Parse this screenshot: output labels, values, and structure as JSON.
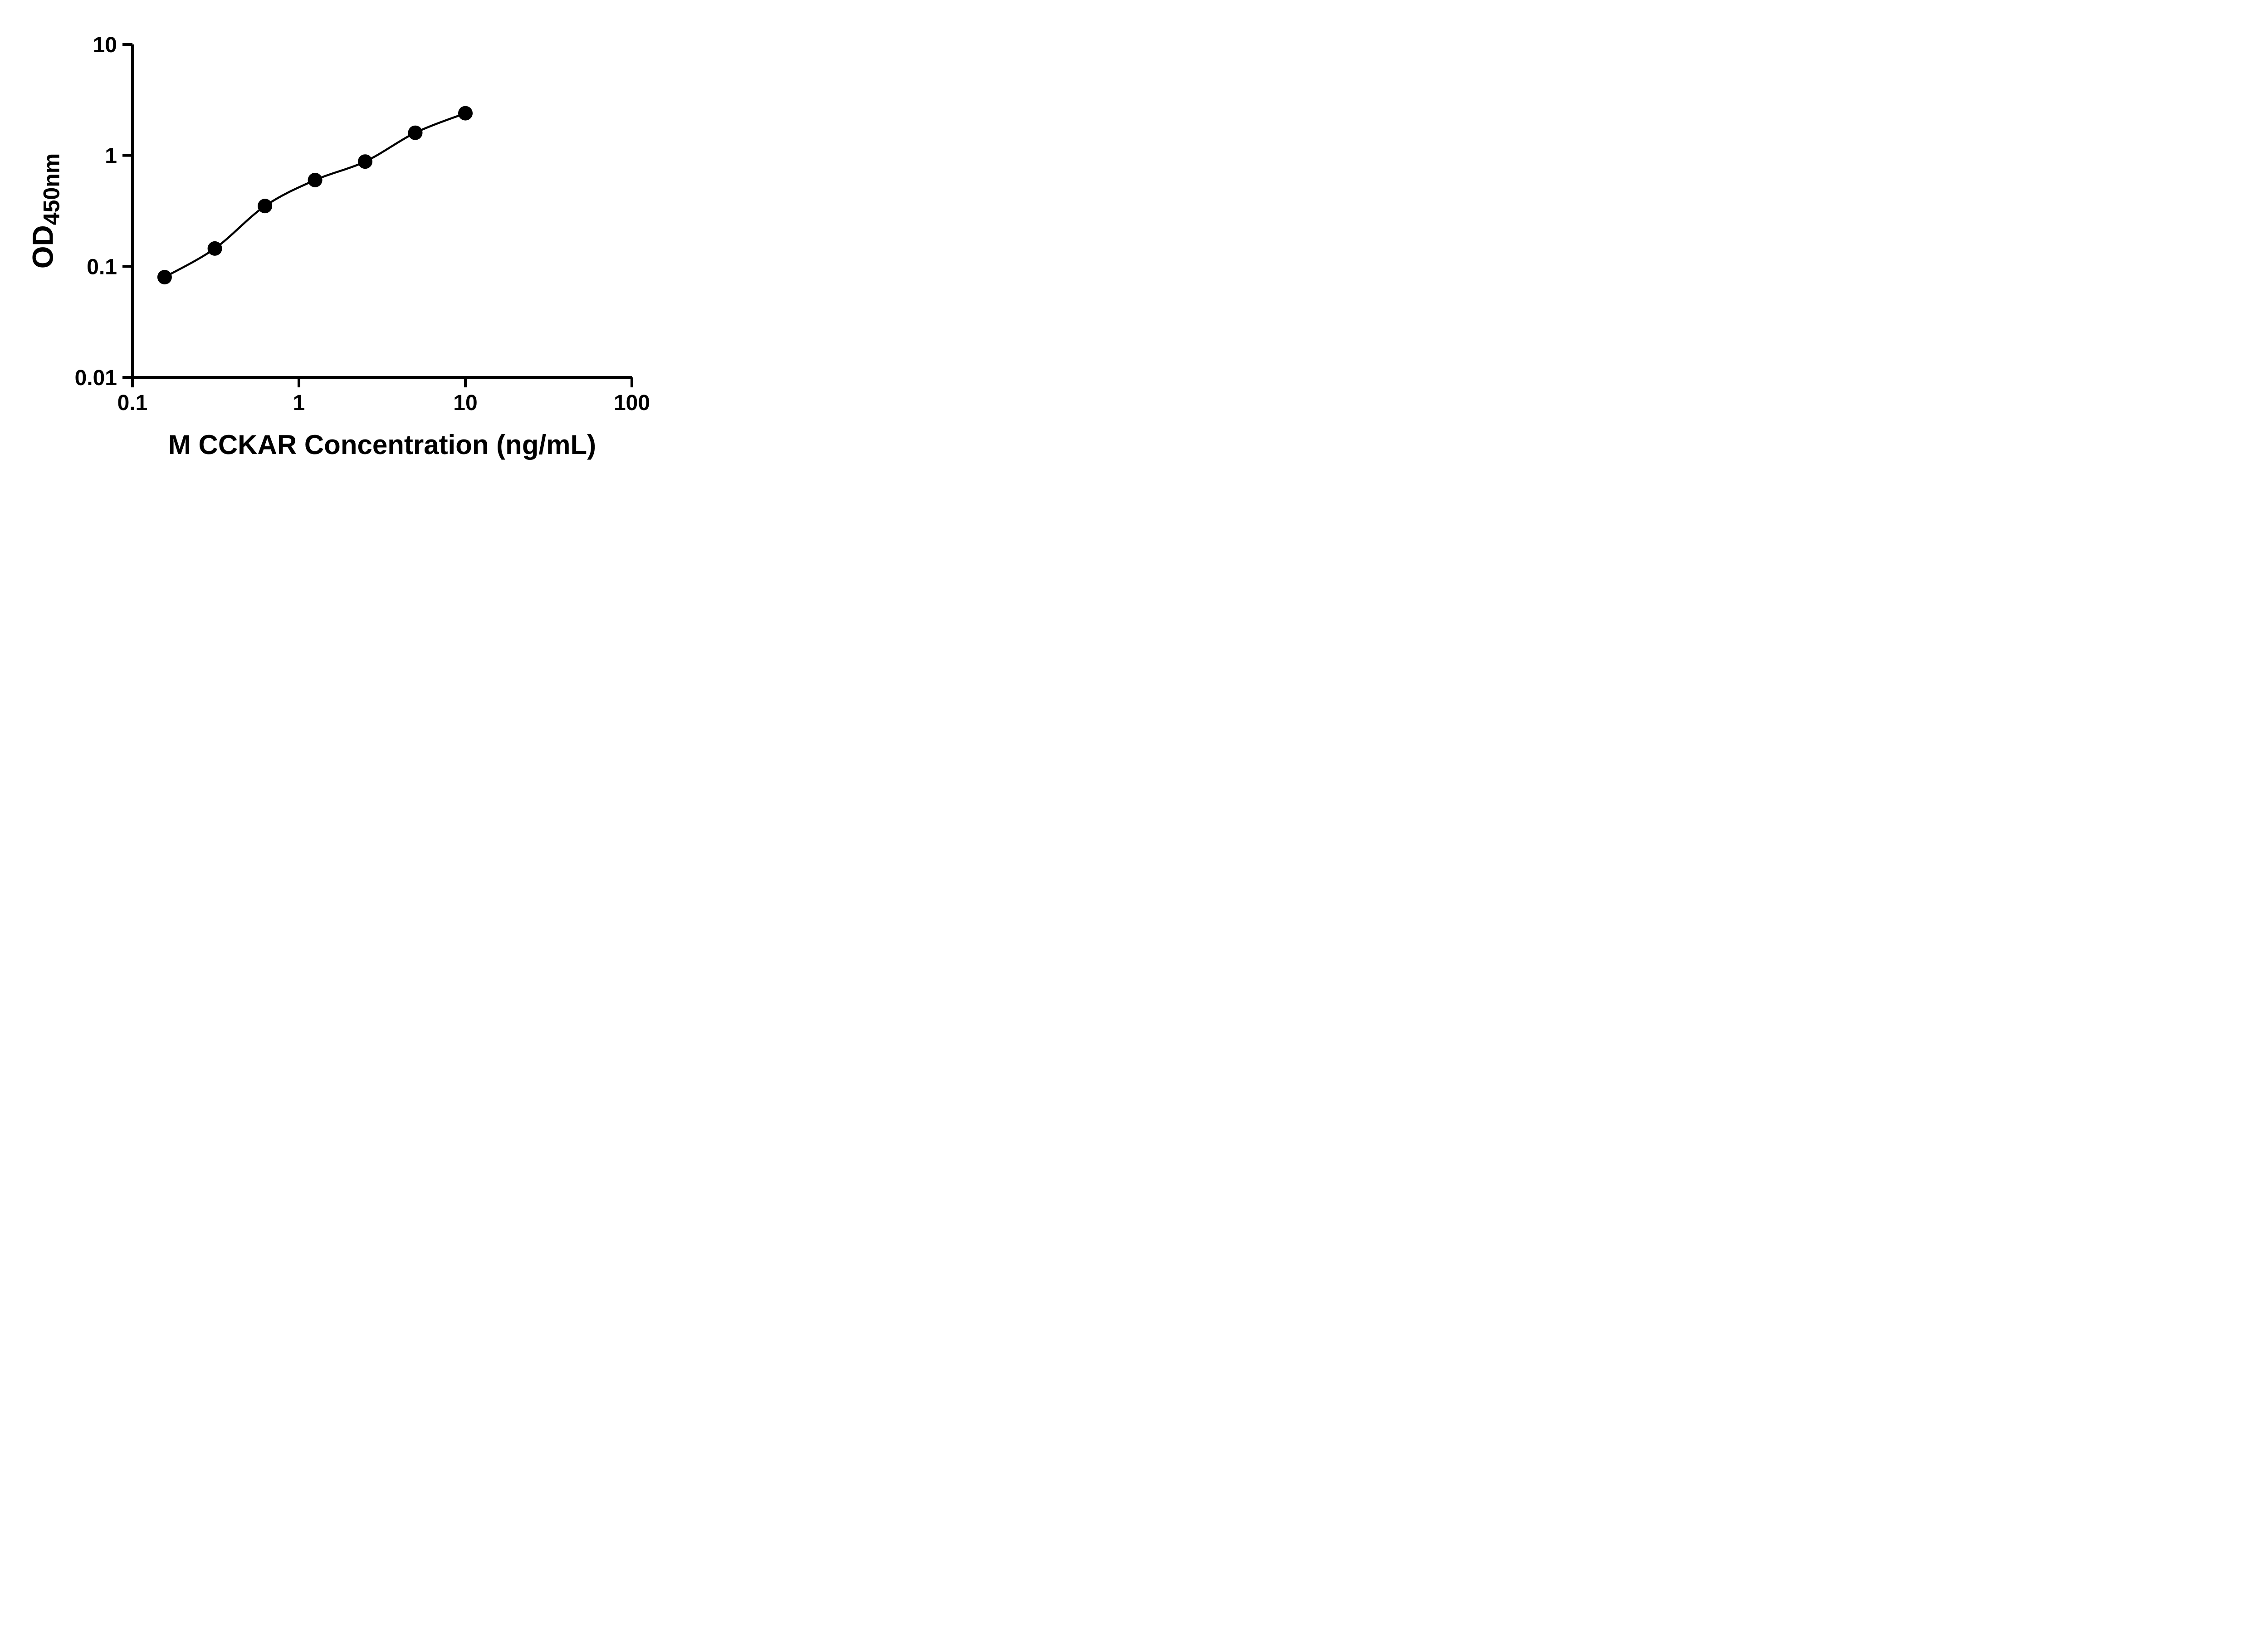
{
  "chart_data": {
    "type": "scatter",
    "fit_line": true,
    "title": "",
    "xlabel": "M CCKAR Concentration (ng/mL)",
    "ylabel_main": "OD",
    "ylabel_sub": "450nm",
    "x_scale": "log",
    "y_scale": "log",
    "xlim": [
      0.1,
      100
    ],
    "ylim": [
      0.01,
      10
    ],
    "x_ticks": [
      0.1,
      1,
      10,
      100
    ],
    "x_tick_labels": [
      "0.1",
      "1",
      "10",
      "100"
    ],
    "y_ticks": [
      0.01,
      0.1,
      1,
      10
    ],
    "y_tick_labels": [
      "0.01",
      "0.1",
      "1",
      "10"
    ],
    "grid": false,
    "legend_position": "none",
    "plot_background": "#ffffff",
    "axis_color": "#000000",
    "series": [
      {
        "marker": "filled-circle",
        "color": "#000000",
        "points": [
          {
            "x": 0.156,
            "y": 0.08
          },
          {
            "x": 0.3125,
            "y": 0.145
          },
          {
            "x": 0.625,
            "y": 0.35
          },
          {
            "x": 1.25,
            "y": 0.6
          },
          {
            "x": 2.5,
            "y": 0.88
          },
          {
            "x": 5,
            "y": 1.6
          },
          {
            "x": 10,
            "y": 2.4
          }
        ]
      }
    ]
  }
}
